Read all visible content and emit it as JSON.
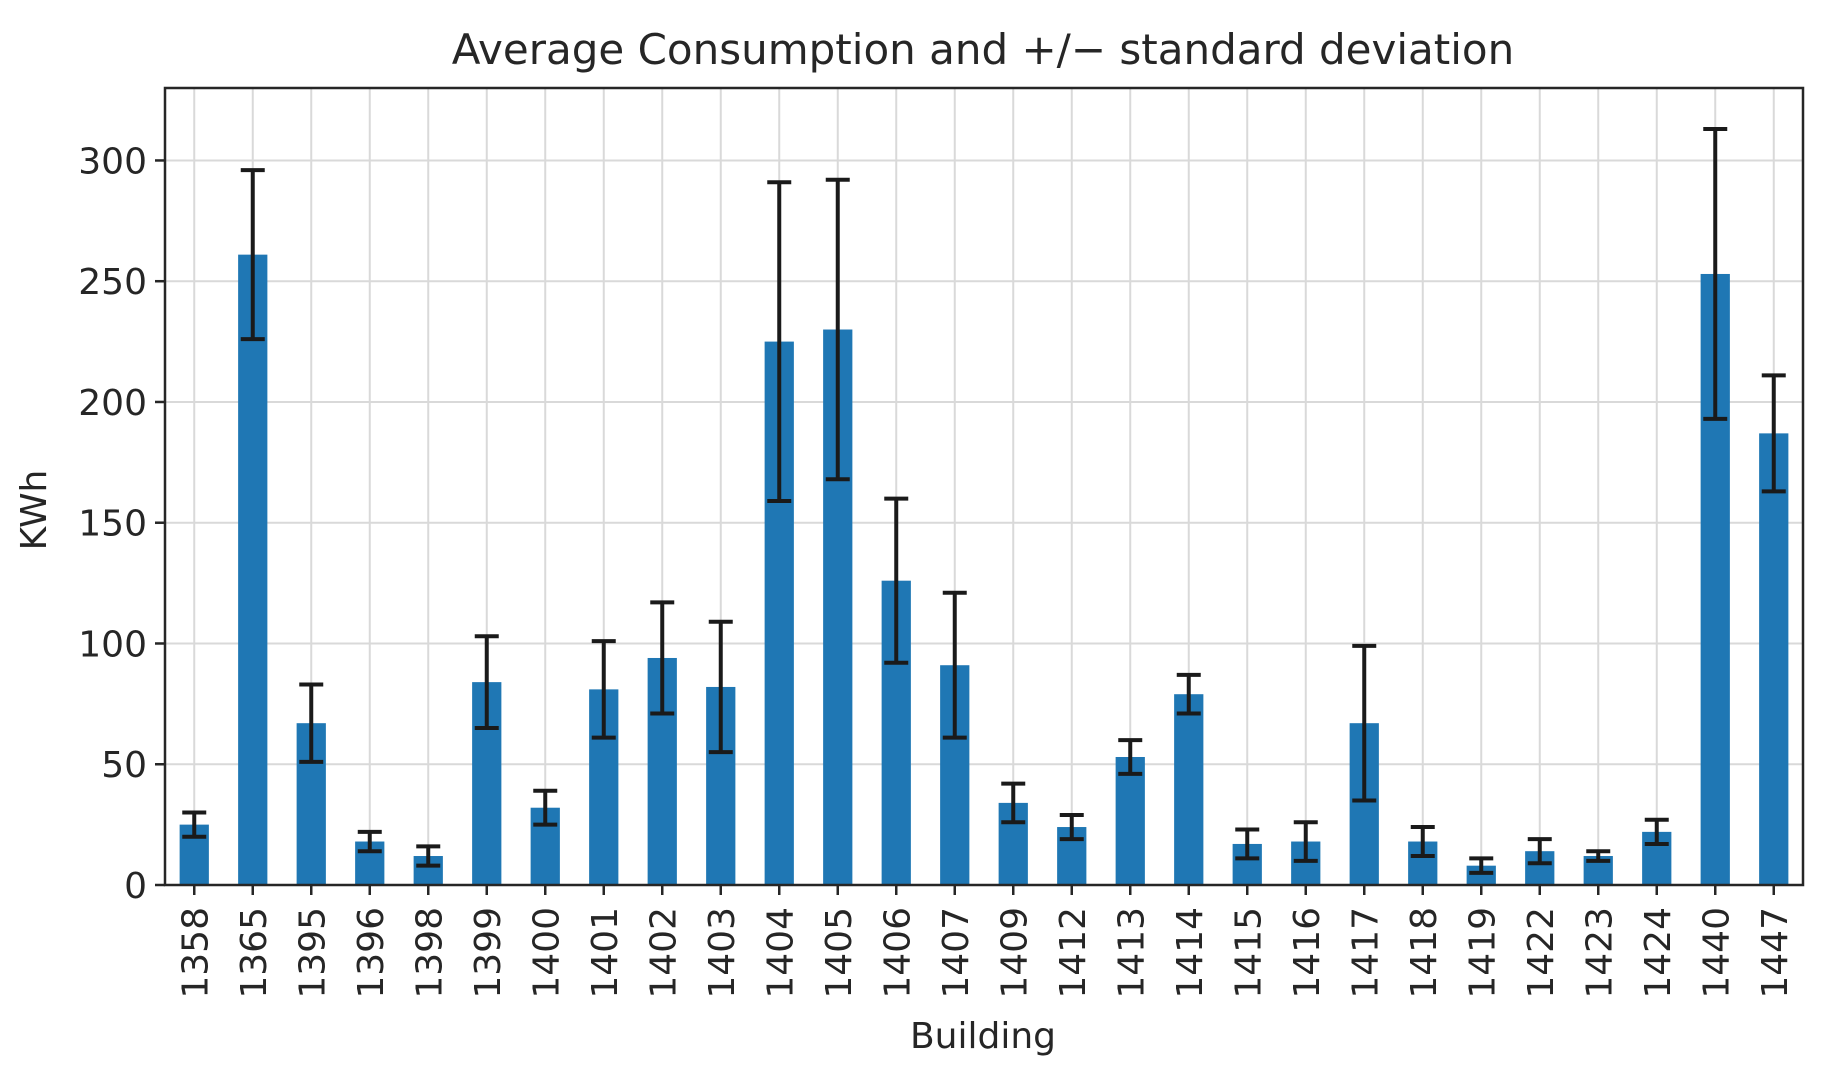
{
  "chart_data": {
    "type": "bar",
    "title": "Average Consumption and +/− standard deviation",
    "xlabel": "Building",
    "ylabel": "KWh",
    "ylim": [
      0,
      330
    ],
    "yticks": [
      0,
      50,
      100,
      150,
      200,
      250,
      300
    ],
    "grid": true,
    "color": "#1f77b4",
    "error_bar_color": "#1a1a1a",
    "categories": [
      "1358",
      "1365",
      "1395",
      "1396",
      "1398",
      "1399",
      "1400",
      "1401",
      "1402",
      "1403",
      "1404",
      "1405",
      "1406",
      "1407",
      "1409",
      "1412",
      "1413",
      "1414",
      "1415",
      "1416",
      "1417",
      "1418",
      "1419",
      "1422",
      "1423",
      "1424",
      "1440",
      "1447"
    ],
    "values": [
      25,
      261,
      67,
      18,
      12,
      84,
      32,
      81,
      94,
      82,
      225,
      230,
      126,
      91,
      34,
      24,
      53,
      79,
      17,
      18,
      67,
      18,
      8,
      14,
      12,
      22,
      253,
      187
    ],
    "std": [
      5,
      35,
      16,
      4,
      4,
      19,
      7,
      20,
      23,
      27,
      66,
      62,
      34,
      30,
      8,
      5,
      7,
      8,
      6,
      8,
      32,
      6,
      3,
      5,
      2,
      5,
      60,
      24
    ]
  }
}
